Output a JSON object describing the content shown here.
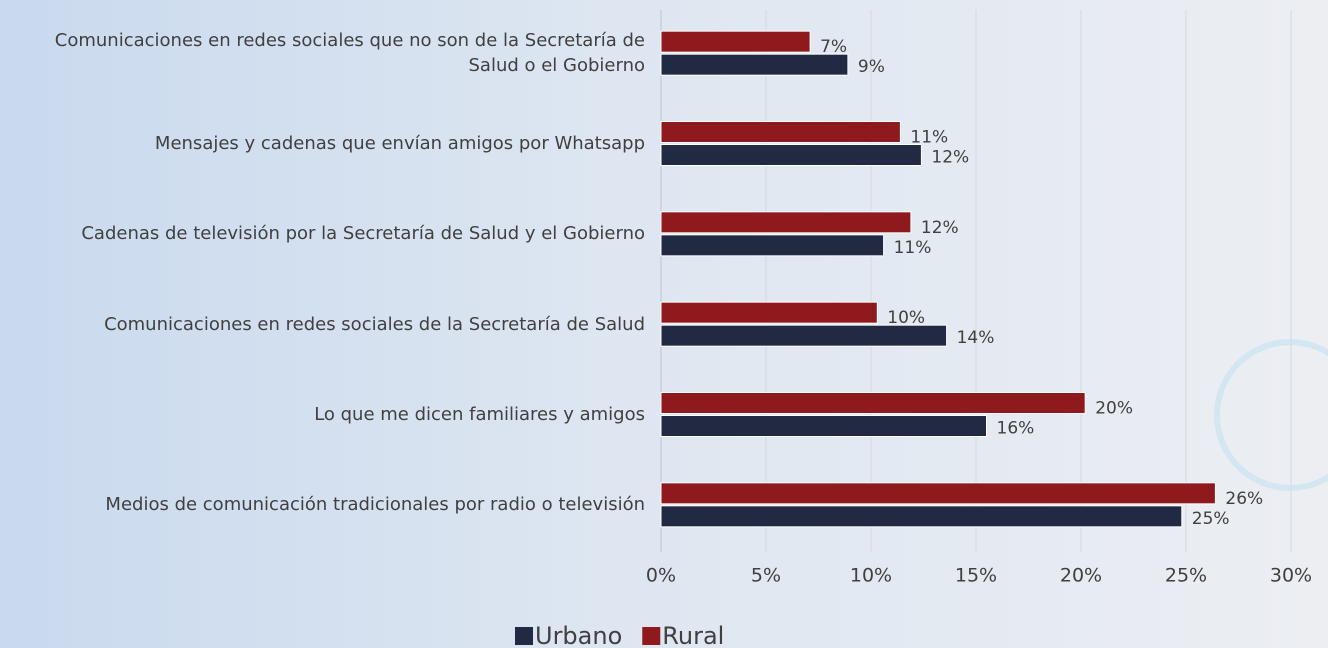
{
  "chart_data": {
    "type": "bar",
    "orientation": "horizontal",
    "categories": [
      "Comunicaciones en redes sociales que no son de la Secretaría de Salud o el Gobierno",
      "Mensajes y cadenas que envían amigos por Whatsapp",
      "Cadenas de televisión por la Secretaría de Salud y el Gobierno",
      "Comunicaciones en redes sociales de la Secretaría de Salud",
      "Lo que me dicen familiares y amigos",
      "Medios de comunicación tradicionales por radio o televisión"
    ],
    "series": [
      {
        "name": "Rural",
        "color": "#8e1a1e",
        "values": [
          7.1,
          11.4,
          11.9,
          10.3,
          20.2,
          26.4
        ],
        "value_labels": [
          "7%",
          "11%",
          "12%",
          "10%",
          "20%",
          "26%"
        ]
      },
      {
        "name": "Urbano",
        "color": "#212a42",
        "values": [
          8.9,
          12.4,
          10.6,
          13.6,
          15.5,
          24.8
        ],
        "value_labels": [
          "9%",
          "12%",
          "11%",
          "14%",
          "16%",
          "25%"
        ]
      }
    ],
    "xlim": [
      0,
      30
    ],
    "xticks": [
      {
        "value": 0,
        "label": "0%"
      },
      {
        "value": 5,
        "label": "5%"
      },
      {
        "value": 10,
        "label": "10%"
      },
      {
        "value": 15,
        "label": "15%"
      },
      {
        "value": 20,
        "label": "20%"
      },
      {
        "value": 25,
        "label": "25%"
      },
      {
        "value": 30,
        "label": "30%"
      }
    ],
    "grid": true,
    "legend": "bottom"
  }
}
